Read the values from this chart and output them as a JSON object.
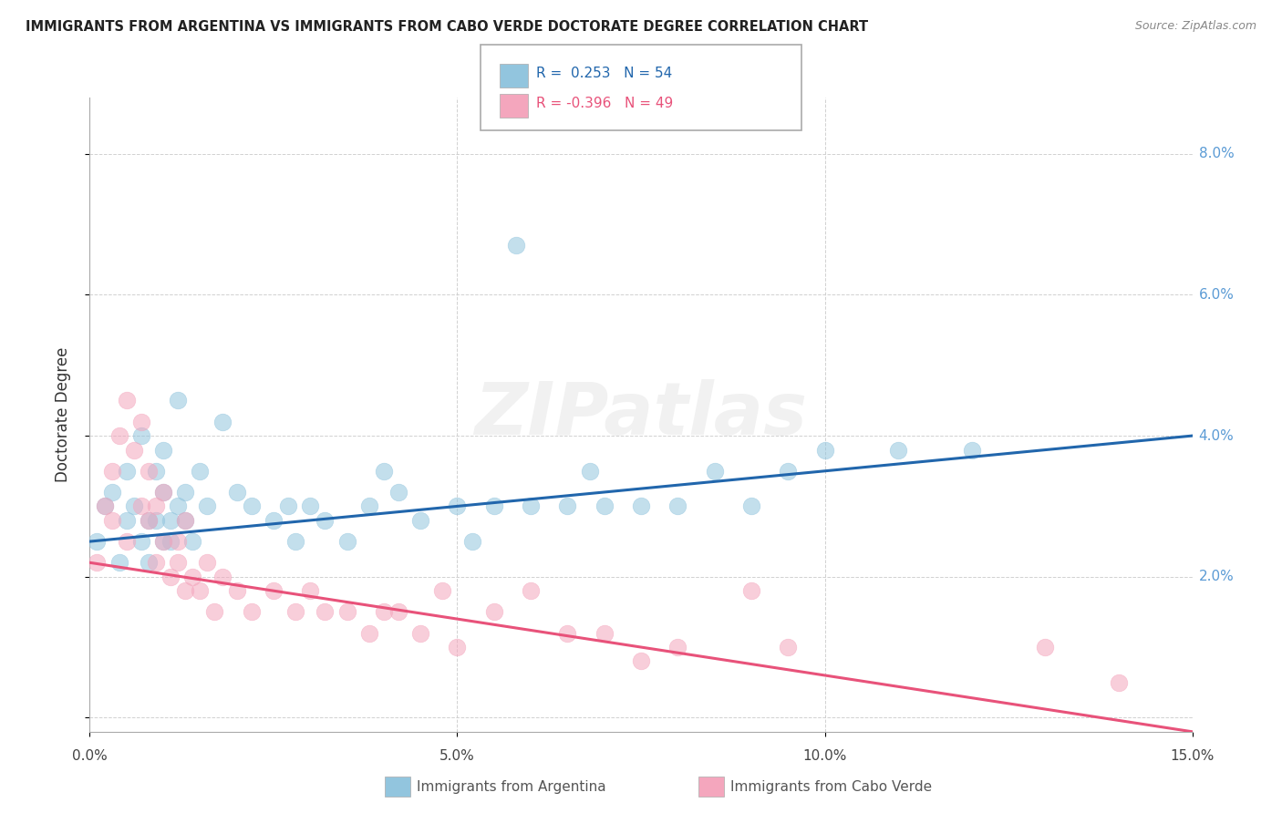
{
  "title": "IMMIGRANTS FROM ARGENTINA VS IMMIGRANTS FROM CABO VERDE DOCTORATE DEGREE CORRELATION CHART",
  "source": "Source: ZipAtlas.com",
  "ylabel": "Doctorate Degree",
  "xlim": [
    0.0,
    0.15
  ],
  "ylim": [
    -0.002,
    0.088
  ],
  "xticks": [
    0.0,
    0.05,
    0.1,
    0.15
  ],
  "xtick_labels": [
    "0.0%",
    "5.0%",
    "10.0%",
    "15.0%"
  ],
  "yticks": [
    0.0,
    0.02,
    0.04,
    0.06,
    0.08
  ],
  "ytick_labels": [
    "",
    "2.0%",
    "4.0%",
    "6.0%",
    "8.0%"
  ],
  "color_argentina": "#92c5de",
  "color_cabo_verde": "#f4a6bd",
  "line_color_argentina": "#2166ac",
  "line_color_cabo_verde": "#e8527a",
  "R_argentina": 0.253,
  "N_argentina": 54,
  "R_cabo_verde": -0.396,
  "N_cabo_verde": 49,
  "legend_label_argentina": "Immigrants from Argentina",
  "legend_label_cabo_verde": "Immigrants from Cabo Verde",
  "argentina_x": [
    0.001,
    0.002,
    0.003,
    0.004,
    0.005,
    0.005,
    0.006,
    0.007,
    0.007,
    0.008,
    0.008,
    0.009,
    0.009,
    0.01,
    0.01,
    0.01,
    0.011,
    0.011,
    0.012,
    0.012,
    0.013,
    0.013,
    0.014,
    0.015,
    0.016,
    0.018,
    0.02,
    0.022,
    0.025,
    0.027,
    0.028,
    0.03,
    0.032,
    0.035,
    0.038,
    0.04,
    0.042,
    0.045,
    0.05,
    0.052,
    0.055,
    0.058,
    0.06,
    0.065,
    0.068,
    0.07,
    0.075,
    0.08,
    0.085,
    0.09,
    0.095,
    0.1,
    0.11,
    0.12
  ],
  "argentina_y": [
    0.025,
    0.03,
    0.032,
    0.022,
    0.028,
    0.035,
    0.03,
    0.025,
    0.04,
    0.028,
    0.022,
    0.035,
    0.028,
    0.025,
    0.032,
    0.038,
    0.028,
    0.025,
    0.03,
    0.045,
    0.028,
    0.032,
    0.025,
    0.035,
    0.03,
    0.042,
    0.032,
    0.03,
    0.028,
    0.03,
    0.025,
    0.03,
    0.028,
    0.025,
    0.03,
    0.035,
    0.032,
    0.028,
    0.03,
    0.025,
    0.03,
    0.067,
    0.03,
    0.03,
    0.035,
    0.03,
    0.03,
    0.03,
    0.035,
    0.03,
    0.035,
    0.038,
    0.038,
    0.038
  ],
  "cabo_verde_x": [
    0.001,
    0.002,
    0.003,
    0.003,
    0.004,
    0.005,
    0.005,
    0.006,
    0.007,
    0.007,
    0.008,
    0.008,
    0.009,
    0.009,
    0.01,
    0.01,
    0.011,
    0.012,
    0.012,
    0.013,
    0.013,
    0.014,
    0.015,
    0.016,
    0.017,
    0.018,
    0.02,
    0.022,
    0.025,
    0.028,
    0.03,
    0.032,
    0.035,
    0.038,
    0.04,
    0.042,
    0.045,
    0.048,
    0.05,
    0.055,
    0.06,
    0.065,
    0.07,
    0.075,
    0.08,
    0.09,
    0.095,
    0.13,
    0.14
  ],
  "cabo_verde_y": [
    0.022,
    0.03,
    0.028,
    0.035,
    0.04,
    0.025,
    0.045,
    0.038,
    0.03,
    0.042,
    0.028,
    0.035,
    0.022,
    0.03,
    0.025,
    0.032,
    0.02,
    0.025,
    0.022,
    0.018,
    0.028,
    0.02,
    0.018,
    0.022,
    0.015,
    0.02,
    0.018,
    0.015,
    0.018,
    0.015,
    0.018,
    0.015,
    0.015,
    0.012,
    0.015,
    0.015,
    0.012,
    0.018,
    0.01,
    0.015,
    0.018,
    0.012,
    0.012,
    0.008,
    0.01,
    0.018,
    0.01,
    0.01,
    0.005
  ],
  "trend_arg_x0": 0.0,
  "trend_arg_y0": 0.025,
  "trend_arg_x1": 0.15,
  "trend_arg_y1": 0.04,
  "trend_cv_x0": 0.0,
  "trend_cv_y0": 0.022,
  "trend_cv_x1": 0.15,
  "trend_cv_y1": -0.002
}
